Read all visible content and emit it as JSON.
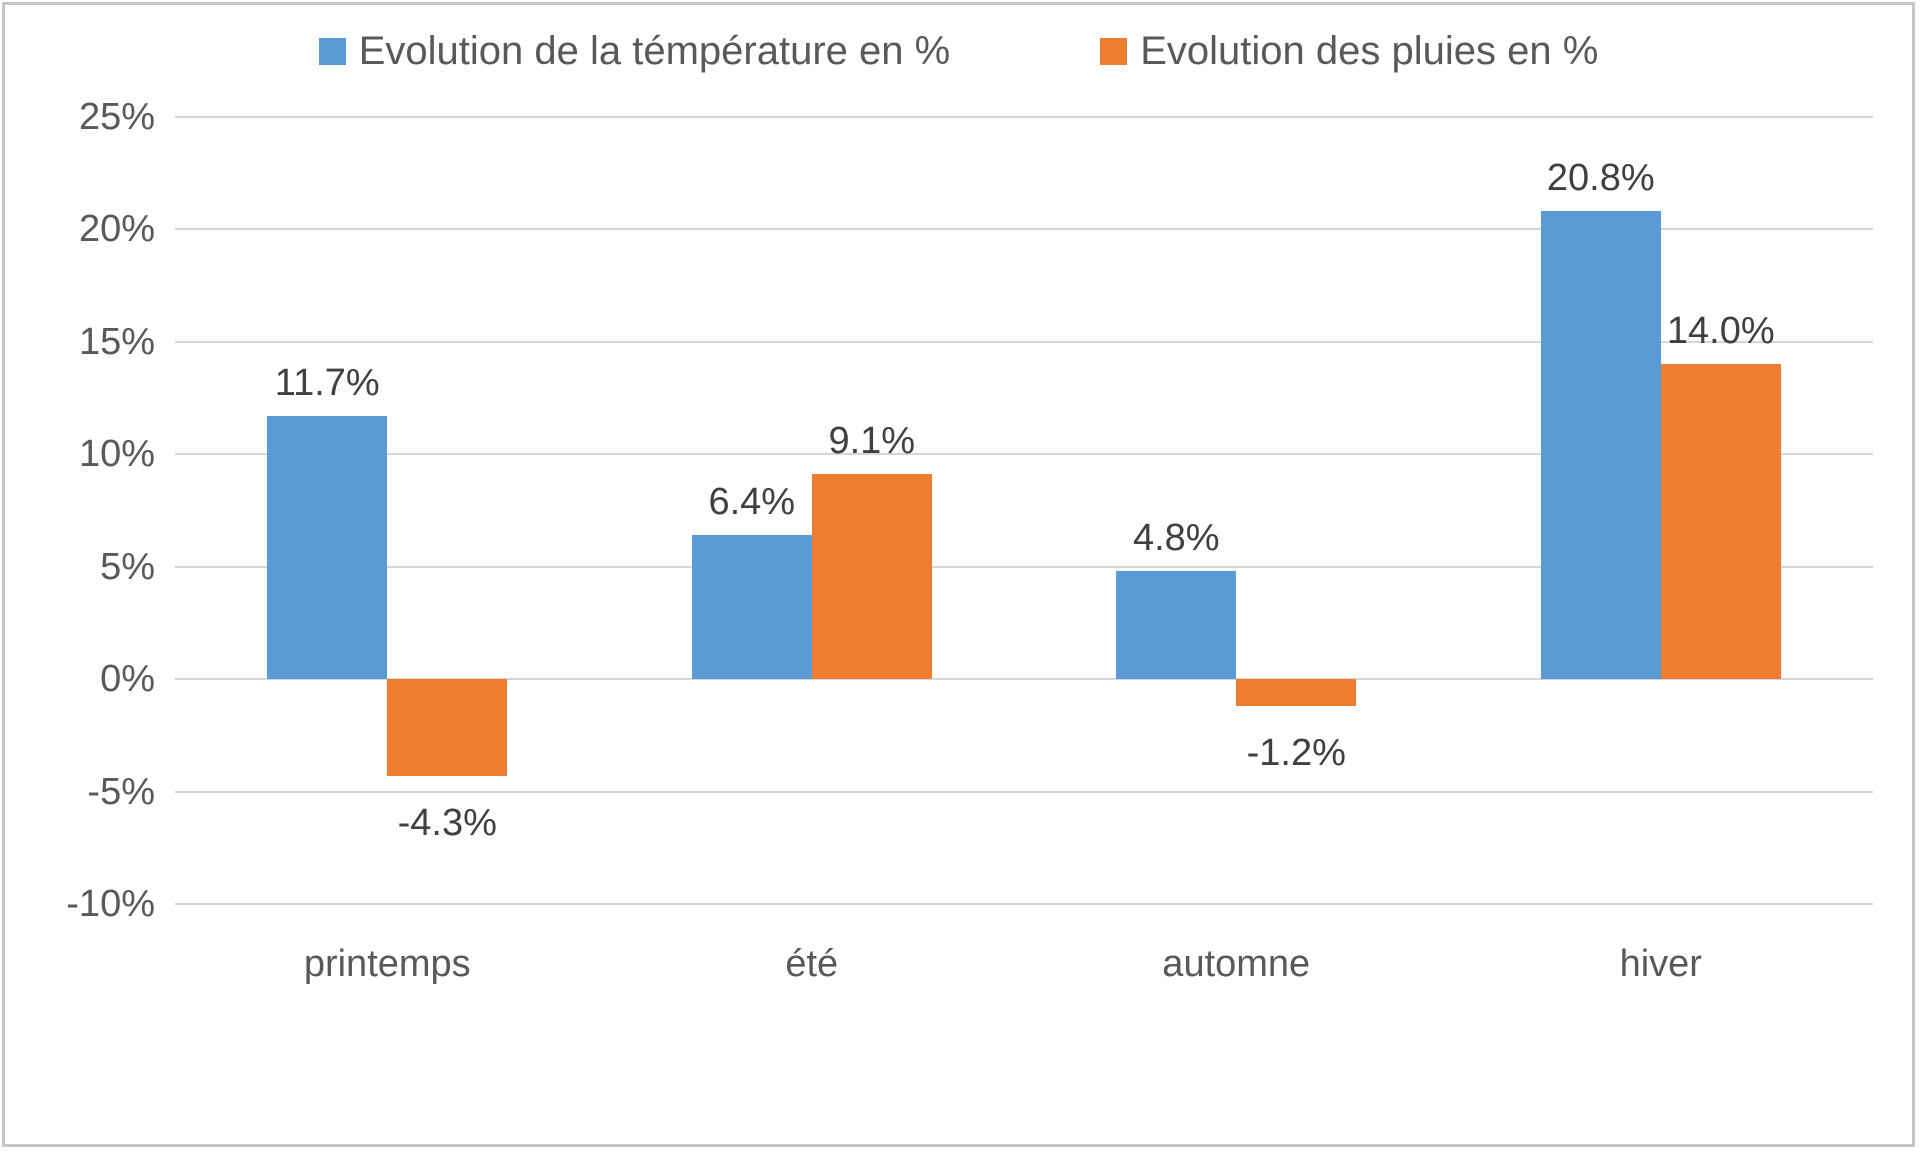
{
  "chart_data": {
    "type": "bar",
    "categories": [
      "printemps",
      "été",
      "automne",
      "hiver"
    ],
    "series": [
      {
        "name": "Evolution de la témpérature en %",
        "color": "#5B9BD5",
        "values": [
          11.7,
          6.4,
          4.8,
          20.8
        ],
        "data_labels": [
          "11.7%",
          "6.4%",
          "4.8%",
          "20.8%"
        ]
      },
      {
        "name": "Evolution des pluies en %",
        "color": "#ED7D31",
        "values": [
          -4.3,
          9.1,
          -1.2,
          14.0
        ],
        "data_labels": [
          "-4.3%",
          "9.1%",
          "-1.2%",
          "14.0%"
        ]
      }
    ],
    "title": "",
    "xlabel": "",
    "ylabel": "",
    "ylim": [
      -10,
      25
    ],
    "ytick_step": 5,
    "ytick_labels": [
      "25%",
      "20%",
      "15%",
      "10%",
      "5%",
      "0%",
      "-5%",
      "-10%"
    ],
    "grid": true,
    "legend_position": "top"
  },
  "legend": {
    "items": [
      {
        "label": "Evolution de la témpérature en %",
        "color": "#5B9BD5"
      },
      {
        "label": "Evolution des pluies en %",
        "color": "#ED7D31"
      }
    ]
  },
  "colors": {
    "series_temperature": "#5B9BD5",
    "series_pluies": "#ED7D31",
    "gridline": "#D6D6D6",
    "axis_text": "#595959",
    "data_label_text": "#404040",
    "frame_border": "#C6C6C6",
    "background": "#FFFFFF"
  }
}
